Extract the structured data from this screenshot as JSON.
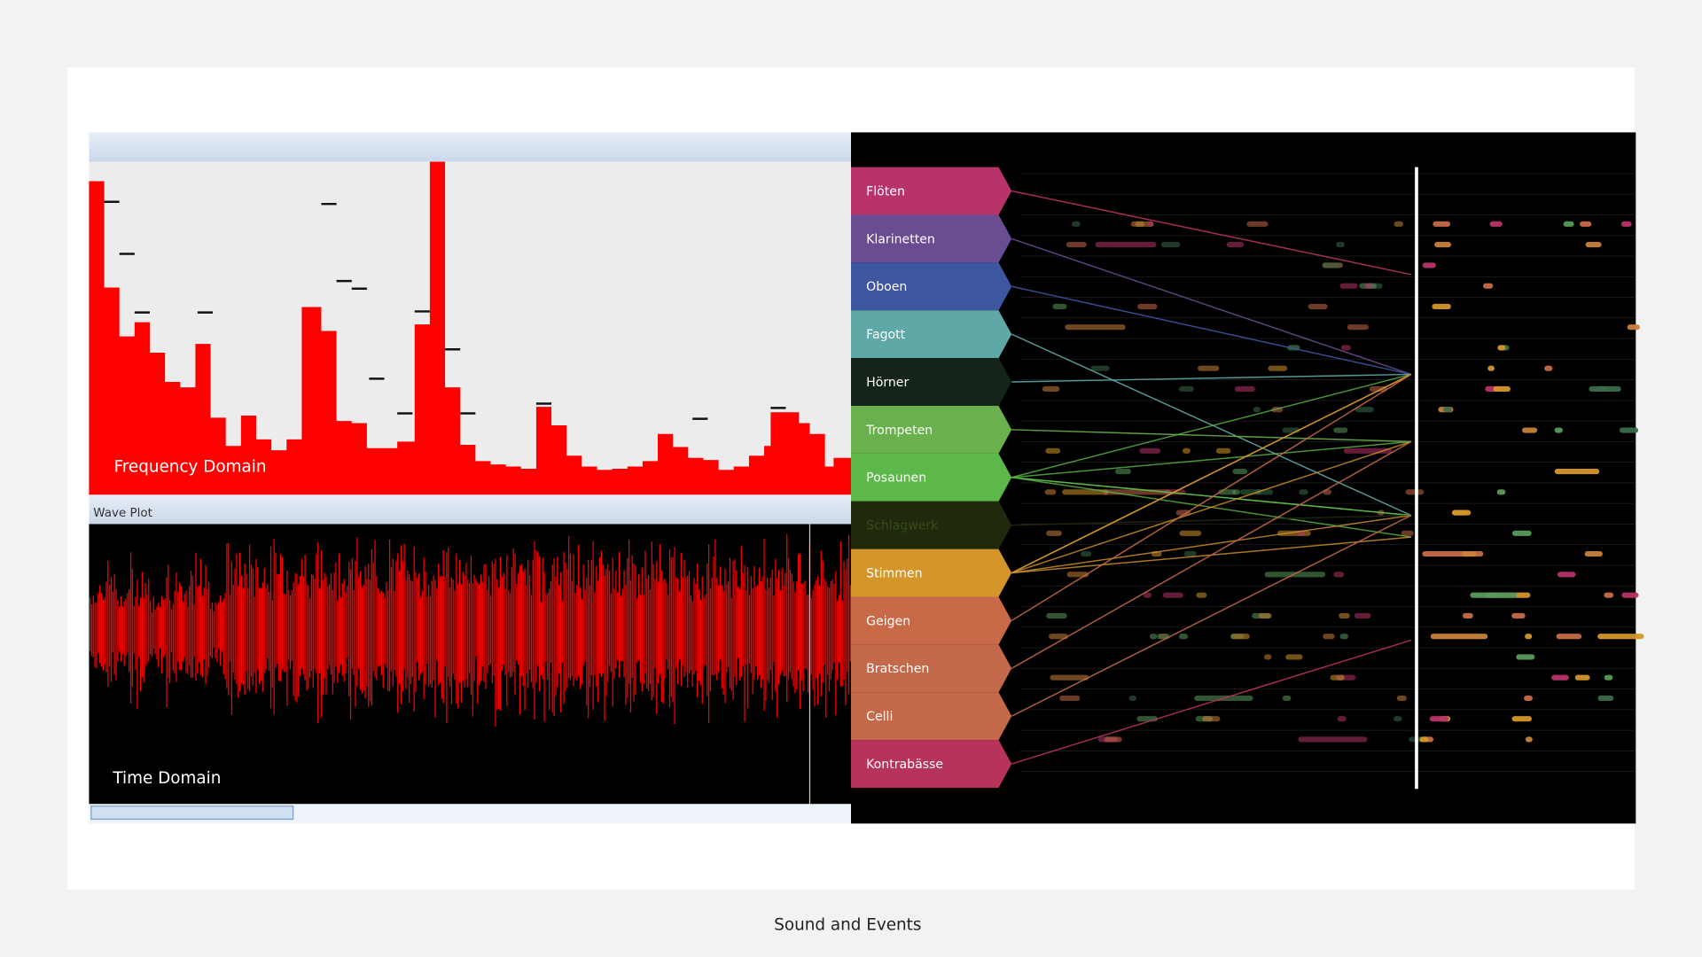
{
  "caption": "Sound and Events",
  "spectrum": {
    "label": "Frequency Domain"
  },
  "wave": {
    "title": "Wave Plot",
    "label": "Time Domain"
  },
  "instruments": [
    {
      "label": "Flöten",
      "color": "#b8336a"
    },
    {
      "label": "Klarinetten",
      "color": "#6a4c93"
    },
    {
      "label": "Oboen",
      "color": "#3d56a0"
    },
    {
      "label": "Fagott",
      "color": "#5fa8a8"
    },
    {
      "label": "Hörner",
      "color": "#142418"
    },
    {
      "label": "Trompeten",
      "color": "#6ab04c"
    },
    {
      "label": "Posaunen",
      "color": "#5cb848"
    },
    {
      "label": "Schlagwerk",
      "color": "#1f2a0d"
    },
    {
      "label": "Stimmen",
      "color": "#d4962a"
    },
    {
      "label": "Geigen",
      "color": "#c86a48"
    },
    {
      "label": "Bratschen",
      "color": "#c4694a"
    },
    {
      "label": "Celli",
      "color": "#c4694a"
    },
    {
      "label": "Kontrabässe",
      "color": "#b8335a"
    }
  ]
}
